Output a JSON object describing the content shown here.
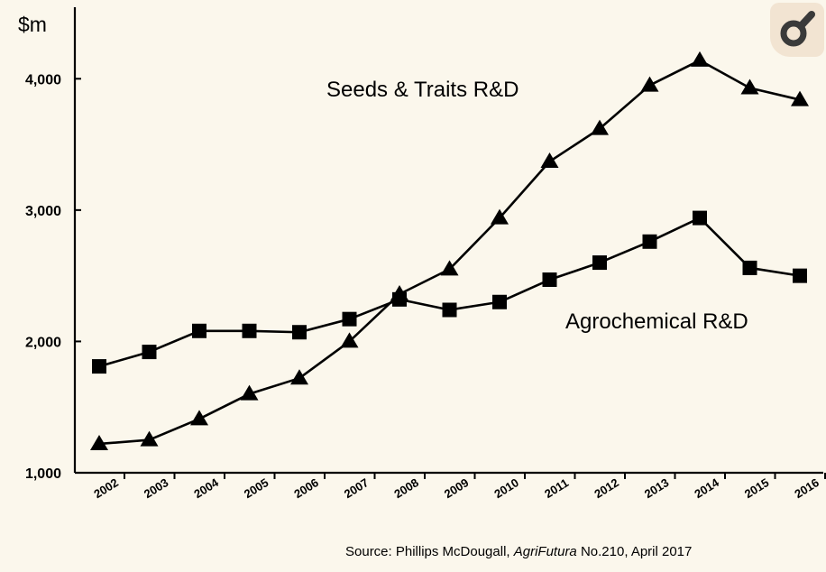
{
  "chart_data": {
    "type": "line",
    "ylabel": "$m",
    "ylim": [
      1000,
      4500
    ],
    "yticks": [
      "1,000",
      "2,000",
      "3,000",
      "4,000"
    ],
    "ytick_values": [
      1000,
      2000,
      3000,
      4000
    ],
    "categories": [
      "2002",
      "2003",
      "2004",
      "2005",
      "2006",
      "2007",
      "2008",
      "2009",
      "2010",
      "2011",
      "2012",
      "2013",
      "2014",
      "2015",
      "2016"
    ],
    "series": [
      {
        "name": "Seeds & Traits R&D",
        "marker": "triangle",
        "values": [
          1220,
          1250,
          1410,
          1600,
          1720,
          2000,
          2360,
          2550,
          2940,
          3370,
          3620,
          3950,
          4140,
          3930,
          3840
        ]
      },
      {
        "name": "Agrochemical R&D",
        "marker": "square",
        "values": [
          1810,
          1920,
          2080,
          2080,
          2070,
          2170,
          2320,
          2240,
          2300,
          2470,
          2600,
          2760,
          2940,
          2560,
          2500
        ]
      }
    ],
    "source": {
      "prefix": "Source: Phillips McDougall, ",
      "italic": "AgriFutura",
      "suffix": " No.210, April 2017"
    }
  },
  "icons": {
    "zoom": "zoom-search-icon"
  },
  "colors": {
    "background": "#fbf7ec",
    "ink": "#000000",
    "badge": "#f2e4d2",
    "badge_icon": "#3a3a3a"
  }
}
